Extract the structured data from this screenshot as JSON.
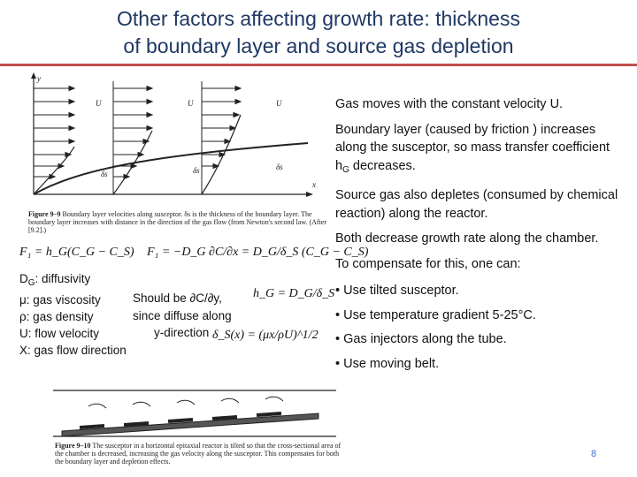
{
  "title_line1": "Other factors affecting growth rate: thickness",
  "title_line2": "of boundary layer and source gas depletion",
  "right": {
    "p1": "Gas moves with the constant velocity U.",
    "p2_pre": "Boundary layer (caused by friction ) increases along the susceptor, so mass transfer coefficient h",
    "p2_sub": "G",
    "p2_post": " decreases.",
    "p3": "Source gas also depletes (consumed by chemical reaction) along the reactor.",
    "p4": "Both decrease growth rate along the chamber.",
    "p5": "To compensate for this, one can:",
    "bullets": [
      "• Use tilted susceptor.",
      "• Use temperature gradient  5-25°C.",
      "• Gas injectors along the tube.",
      "• Use moving belt."
    ]
  },
  "defs": {
    "d1_pre": "D",
    "d1_sub": "G",
    "d1_post": ": diffusivity",
    "d2": "μ: gas viscosity",
    "d3": "ρ: gas density",
    "d4": "U: flow velocity",
    "d5": "X: gas flow direction"
  },
  "note": {
    "l1": "Should be ∂C/∂y,",
    "l2": "since diffuse along",
    "l3": "y-direction"
  },
  "fig1": {
    "caption_bold": "Figure 9–9",
    "caption": "Boundary layer velocities along susceptor. δs is the thickness of the boundary layer. The boundary layer increases with distance in the direction of the gas flow (from Newton's second law. (After [9.2].)",
    "labels": {
      "u1": "U",
      "u2": "U",
      "u3": "U",
      "y": "y",
      "x": "x",
      "d1": "δs",
      "d2": "δs",
      "d3": "δs"
    }
  },
  "fig2": {
    "caption_bold": "Figure 9–10",
    "caption": "The susceptor in a horizontal epitaxial reactor is tilted so that the cross-sectional area of the chamber is decreased, increasing the gas velocity along the susceptor. This compensates for both the boundary layer and depletion effects."
  },
  "equations": {
    "f1_left": "F₁ = h_G(C_G − C_S)",
    "f1_right": "F₁ = −D_G ∂C/∂x = D_G/δ_S (C_G − C_S)",
    "hg": "h_G = D_G/δ_S",
    "ds": "δ_S(x) = (μx/ρU)^1/2"
  },
  "page_number": "8"
}
